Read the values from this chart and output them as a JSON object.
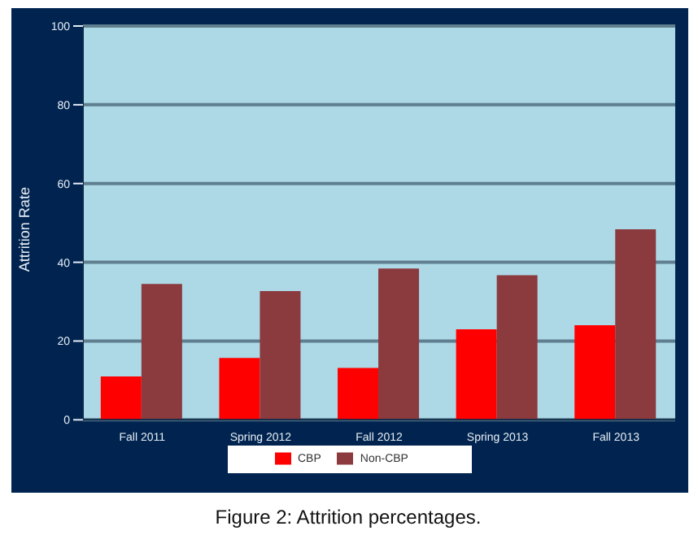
{
  "chart_data": {
    "type": "bar",
    "title": "Figure 2: Attrition percentages.",
    "ylabel": "Attrition Rate",
    "categories": [
      "Fall 2011",
      "Spring 2012",
      "Fall 2012",
      "Spring 2013",
      "Fall 2013"
    ],
    "series": [
      {
        "name": "CBP",
        "color": "#ff0000",
        "values": [
          11,
          15.7,
          13.2,
          23,
          24
        ]
      },
      {
        "name": "Non-CBP",
        "color": "#8b3a3e",
        "values": [
          34.5,
          32.7,
          38.4,
          36.7,
          48.4
        ]
      }
    ],
    "ylim": [
      0,
      100
    ],
    "yticks": [
      0,
      20,
      40,
      60,
      80,
      100
    ],
    "grid": "y",
    "legend": "bottom"
  }
}
